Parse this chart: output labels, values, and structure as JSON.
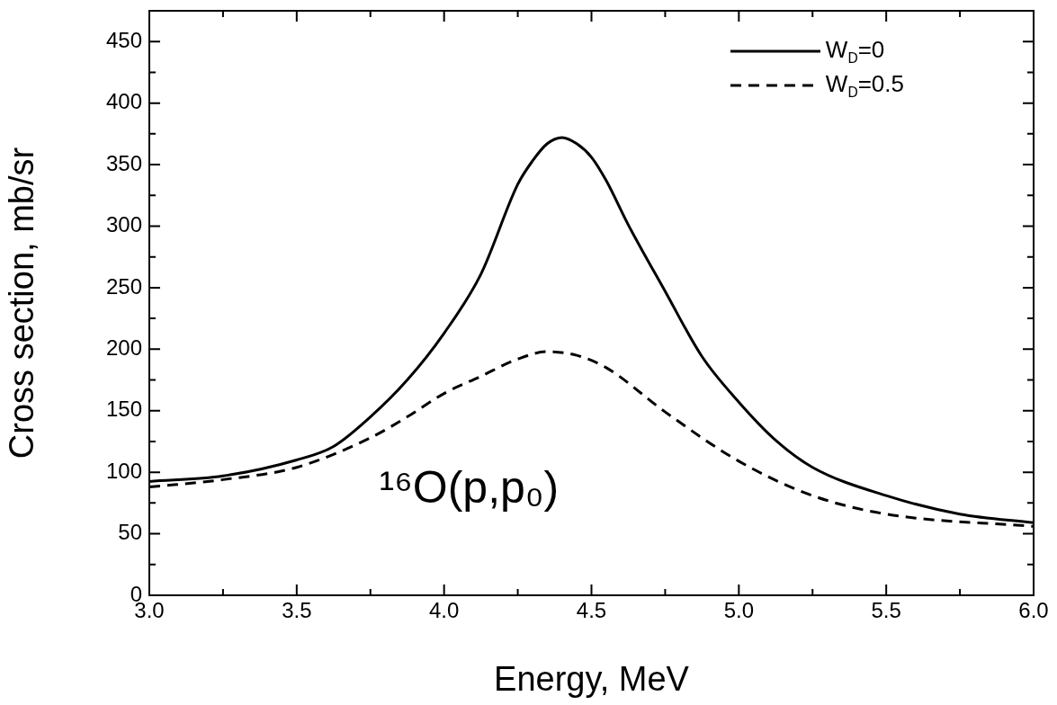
{
  "chart_data": {
    "type": "line",
    "xlabel": "Energy, MeV",
    "ylabel": "Cross section, mb/sr",
    "xlim": [
      3,
      6
    ],
    "ylim": [
      0,
      475
    ],
    "xticks": [
      {
        "value": 3,
        "label": "3.0"
      },
      {
        "value": 3.25,
        "label": null
      },
      {
        "value": 3.5,
        "label": "3.5"
      },
      {
        "value": 3.75,
        "label": null
      },
      {
        "value": 4,
        "label": "4.0"
      },
      {
        "value": 4.25,
        "label": null
      },
      {
        "value": 4.5,
        "label": "4.5"
      },
      {
        "value": 4.75,
        "label": null
      },
      {
        "value": 5,
        "label": "5.0"
      },
      {
        "value": 5.25,
        "label": null
      },
      {
        "value": 5.5,
        "label": "5.5"
      },
      {
        "value": 5.75,
        "label": null
      },
      {
        "value": 6,
        "label": "6.0"
      }
    ],
    "yticks": [
      0,
      {
        "value": 25,
        "label": null
      },
      50,
      {
        "value": 75,
        "label": null
      },
      100,
      {
        "value": 125,
        "label": null
      },
      150,
      {
        "value": 175,
        "label": null
      },
      200,
      {
        "value": 225,
        "label": null
      },
      250,
      {
        "value": 275,
        "label": null
      },
      300,
      {
        "value": 325,
        "label": null
      },
      350,
      {
        "value": 375,
        "label": null
      },
      400,
      {
        "value": 425,
        "label": null
      },
      450
    ],
    "grid": false,
    "legend": "top right",
    "marker": "none",
    "annotations": [
      "¹⁶O(p,p₀)"
    ],
    "series": [
      {
        "name": "W$_{D}$=0",
        "color": "#000000",
        "line_style": "solid",
        "x": [
          3,
          3.25,
          3.5,
          3.625,
          3.75,
          3.875,
          4,
          4.125,
          4.25,
          4.3,
          4.35,
          4.4,
          4.45,
          4.5,
          4.55,
          4.625,
          4.75,
          4.875,
          5,
          5.125,
          5.25,
          5.5,
          5.75,
          6
        ],
        "values": [
          92.5,
          97,
          110,
          121,
          145,
          175,
          213,
          261,
          334,
          353,
          367,
          372,
          367,
          356,
          337,
          301,
          247,
          194,
          157,
          126,
          104,
          81,
          66,
          59
        ]
      },
      {
        "name": "W$_{D}$=0.5",
        "color": "#000000",
        "line_style": "dashed",
        "x": [
          3,
          3.25,
          3.5,
          3.75,
          3.875,
          4,
          4.125,
          4.25,
          4.35,
          4.45,
          4.55,
          4.75,
          5,
          5.25,
          5.5,
          6
        ],
        "values": [
          88,
          94,
          104,
          128,
          145,
          164,
          178,
          192,
          198,
          195,
          185,
          149,
          109,
          81,
          66,
          56
        ]
      }
    ]
  }
}
